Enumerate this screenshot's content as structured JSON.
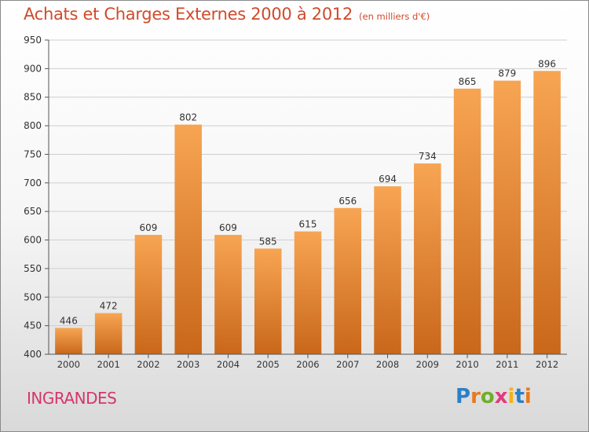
{
  "title": "Achats et Charges Externes 2000 à 2012",
  "subtitle": "(en milliers d'€)",
  "commune": "INGRANDES",
  "logo": {
    "text": "Proxiti",
    "letter_colors": [
      "#2c7fc9",
      "#e9791e",
      "#6fae2a",
      "#e23a7c",
      "#f2b21c",
      "#2c7fc9",
      "#e9791e"
    ]
  },
  "colors": {
    "bar_top": "#f7a553",
    "bar_bottom": "#c9671a",
    "title": "#d04a2a",
    "commune": "#d6356e",
    "grid": "#cfcfcf",
    "axis_text": "#333333"
  },
  "chart_data": {
    "type": "bar",
    "categories": [
      "2000",
      "2001",
      "2002",
      "2003",
      "2004",
      "2005",
      "2006",
      "2007",
      "2008",
      "2009",
      "2010",
      "2011",
      "2012"
    ],
    "values": [
      446,
      472,
      609,
      802,
      609,
      585,
      615,
      656,
      694,
      734,
      865,
      879,
      896
    ],
    "data_labels": [
      "446",
      "472",
      "609",
      "802",
      "609",
      "585",
      "615",
      "656",
      "694",
      "734",
      "865",
      "879",
      "896"
    ],
    "ylim": [
      400,
      950
    ],
    "yticks": [
      400,
      450,
      500,
      550,
      600,
      650,
      700,
      750,
      800,
      850,
      900,
      950
    ],
    "ytick_labels": [
      "400",
      "450",
      "500",
      "550",
      "600",
      "650",
      "700",
      "750",
      "800",
      "850",
      "900",
      "950"
    ],
    "grid": true,
    "title": "Achats et Charges Externes 2000 à 2012",
    "xlabel": "",
    "ylabel": ""
  }
}
